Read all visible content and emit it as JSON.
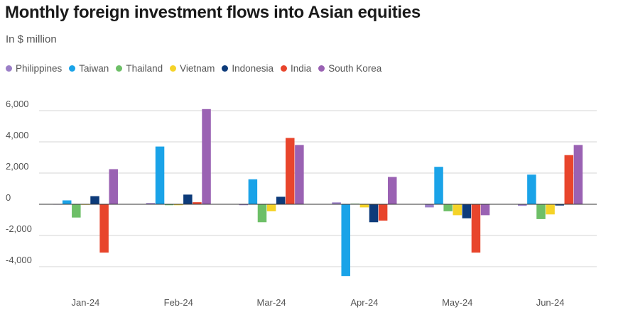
{
  "header": {
    "title": "Monthly foreign investment flows into Asian equities",
    "subtitle": "In $ million"
  },
  "chart_data": {
    "type": "bar",
    "title": "Monthly foreign investment flows into Asian equities",
    "subtitle": "In $ million",
    "xlabel": "",
    "ylabel": "",
    "ylim": [
      -5000,
      7000
    ],
    "yticks": [
      -4000,
      -2000,
      0,
      2000,
      4000,
      6000
    ],
    "ytick_labels": [
      "-4,000",
      "-2,000",
      "0",
      "2,000",
      "4,000",
      "6,000"
    ],
    "grid": true,
    "legend_position": "top-left",
    "categories": [
      "Jan-24",
      "Feb-24",
      "Mar-24",
      "Apr-24",
      "May-24",
      "Jun-24"
    ],
    "series": [
      {
        "name": "Philippines",
        "color": "#9b7fc7",
        "values": [
          20,
          80,
          -60,
          120,
          -200,
          -100
        ]
      },
      {
        "name": "Taiwan",
        "color": "#1aa3e8",
        "values": [
          250,
          3700,
          1600,
          -4600,
          2400,
          1900
        ]
      },
      {
        "name": "Thailand",
        "color": "#6dbf67",
        "values": [
          -850,
          -60,
          -1150,
          40,
          -450,
          -950
        ]
      },
      {
        "name": "Vietnam",
        "color": "#f5d328",
        "values": [
          10,
          -60,
          -450,
          -200,
          -700,
          -650
        ]
      },
      {
        "name": "Indonesia",
        "color": "#0d3b7a",
        "values": [
          520,
          620,
          480,
          -1150,
          -900,
          -80
        ]
      },
      {
        "name": "India",
        "color": "#e8452c",
        "values": [
          -3100,
          130,
          4250,
          -1050,
          -3100,
          3150
        ]
      },
      {
        "name": "South Korea",
        "color": "#9a62b3",
        "values": [
          2250,
          6100,
          3800,
          1750,
          -700,
          3800
        ]
      }
    ]
  }
}
